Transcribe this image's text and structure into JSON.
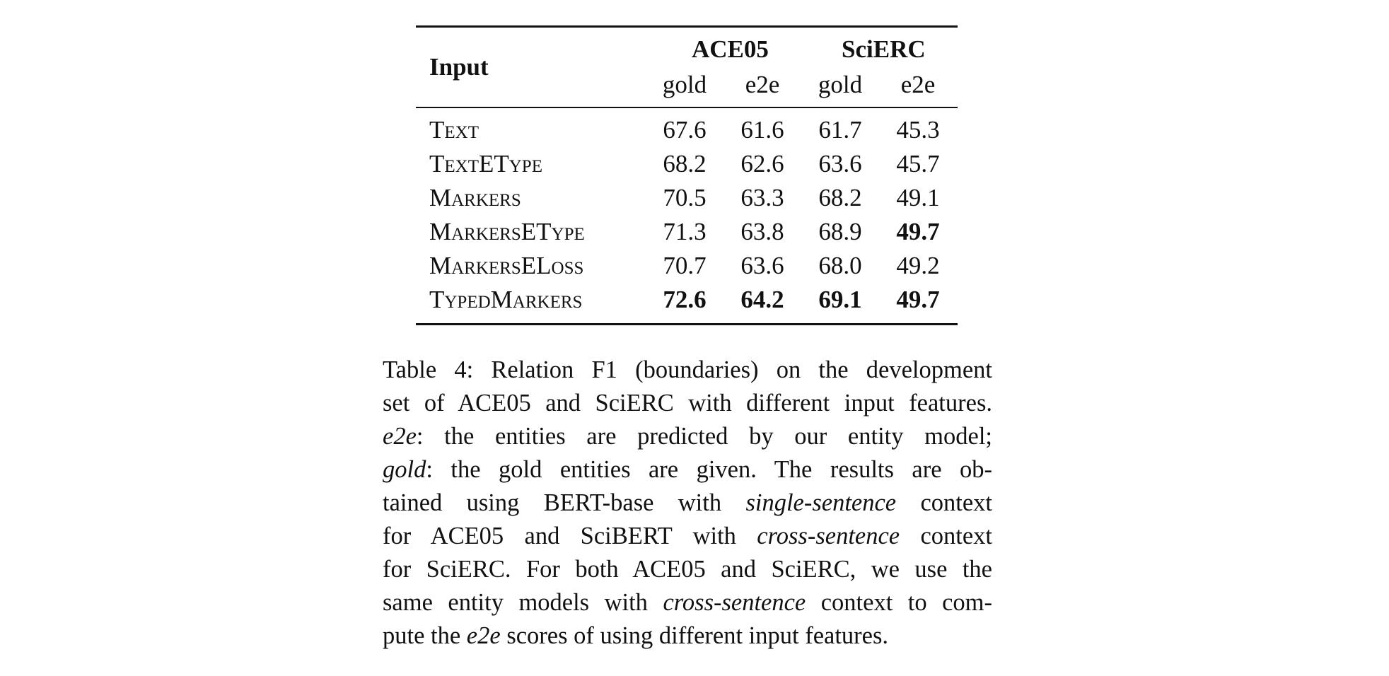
{
  "table": {
    "input_header": "Input",
    "groups": [
      "ACE05",
      "SciERC"
    ],
    "subheaders": [
      "gold",
      "e2e",
      "gold",
      "e2e"
    ],
    "rows": [
      {
        "input": "Text",
        "values": [
          "67.6",
          "61.6",
          "61.7",
          "45.3"
        ],
        "bold": [
          false,
          false,
          false,
          false
        ]
      },
      {
        "input": "TextEType",
        "values": [
          "68.2",
          "62.6",
          "63.6",
          "45.7"
        ],
        "bold": [
          false,
          false,
          false,
          false
        ]
      },
      {
        "input": "Markers",
        "values": [
          "70.5",
          "63.3",
          "68.2",
          "49.1"
        ],
        "bold": [
          false,
          false,
          false,
          false
        ]
      },
      {
        "input": "MarkersEType",
        "values": [
          "71.3",
          "63.8",
          "68.9",
          "49.7"
        ],
        "bold": [
          false,
          false,
          false,
          true
        ]
      },
      {
        "input": "MarkersELoss",
        "values": [
          "70.7",
          "63.6",
          "68.0",
          "49.2"
        ],
        "bold": [
          false,
          false,
          false,
          false
        ]
      },
      {
        "input": "TypedMarkers",
        "values": [
          "72.6",
          "64.2",
          "69.1",
          "49.7"
        ],
        "bold": [
          true,
          true,
          true,
          true
        ]
      }
    ]
  },
  "caption": {
    "lines": [
      [
        {
          "t": "Table 4: Relation F1 (boundaries) on the development"
        }
      ],
      [
        {
          "t": "set of ACE05 and SciERC with different input features."
        }
      ],
      [
        {
          "t": "e2e",
          "i": true
        },
        {
          "t": ":  the entities are predicted by our entity model;"
        }
      ],
      [
        {
          "t": "gold",
          "i": true
        },
        {
          "t": ":  the gold entities are given.  The results are ob-"
        }
      ],
      [
        {
          "t": "tained using BERT-base with "
        },
        {
          "t": "single-sentence",
          "i": true
        },
        {
          "t": " context"
        }
      ],
      [
        {
          "t": "for ACE05 and SciBERT with "
        },
        {
          "t": "cross-sentence",
          "i": true
        },
        {
          "t": " context"
        }
      ],
      [
        {
          "t": "for SciERC. For both ACE05 and SciERC, we use the"
        }
      ],
      [
        {
          "t": "same entity models with "
        },
        {
          "t": "cross-sentence",
          "i": true
        },
        {
          "t": " context to com-"
        }
      ],
      [
        {
          "t": "pute the "
        },
        {
          "t": "e2e",
          "i": true
        },
        {
          "t": " scores of using different input features."
        }
      ]
    ]
  }
}
